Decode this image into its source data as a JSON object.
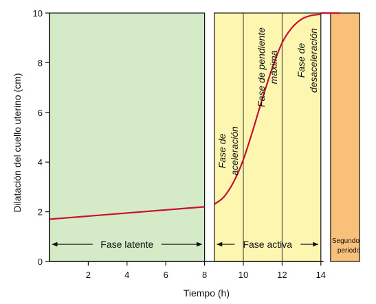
{
  "chart_data": {
    "type": "line",
    "title": "",
    "xlabel": "Tiempo (h)",
    "ylabel": "Dilatación del cuello uterino (cm)",
    "xlim": [
      0,
      14
    ],
    "ylim": [
      0,
      10
    ],
    "x_ticks": [
      "2",
      "4",
      "6",
      "8",
      "10",
      "12",
      "14"
    ],
    "y_ticks": [
      "0",
      "2",
      "4",
      "6",
      "8",
      "10"
    ],
    "grid": false,
    "series": [
      {
        "name": "",
        "color": "#c8102e",
        "x": [
          0,
          8
        ],
        "y": [
          1.7,
          2.2
        ]
      },
      {
        "name": "",
        "color": "#c8102e",
        "x": [
          8.5,
          9,
          9.5,
          10,
          10.5,
          11,
          11.5,
          12,
          12.5,
          13,
          13.5,
          14
        ],
        "y": [
          2.3,
          2.6,
          3.2,
          4.1,
          5.3,
          6.6,
          7.8,
          8.8,
          9.4,
          9.75,
          9.9,
          9.95
        ]
      },
      {
        "name": "",
        "color": "#c8102e",
        "x": [
          14,
          15
        ],
        "y": [
          10,
          10
        ]
      }
    ],
    "regions": [
      {
        "label": "Fase latente",
        "x_start": 0,
        "x_end": 8,
        "color": "#d5ebc7"
      },
      {
        "label": "Fase activa",
        "x_start": 8.5,
        "x_end": 14,
        "color": "#fdf6b1"
      },
      {
        "label_line1": "Segundo",
        "label_line2": "periodo",
        "x_start": 14.5,
        "x_end": 16,
        "color": "#f9c07a"
      }
    ],
    "divider_lines_x": [
      10,
      12
    ],
    "sub_phase_annotations": [
      {
        "line1": "Fase de",
        "line2": "aceleración"
      },
      {
        "line1": "Fase de pendiente",
        "line2": "máxima"
      },
      {
        "line1": "Fase de",
        "line2": "desaceleración"
      }
    ]
  }
}
